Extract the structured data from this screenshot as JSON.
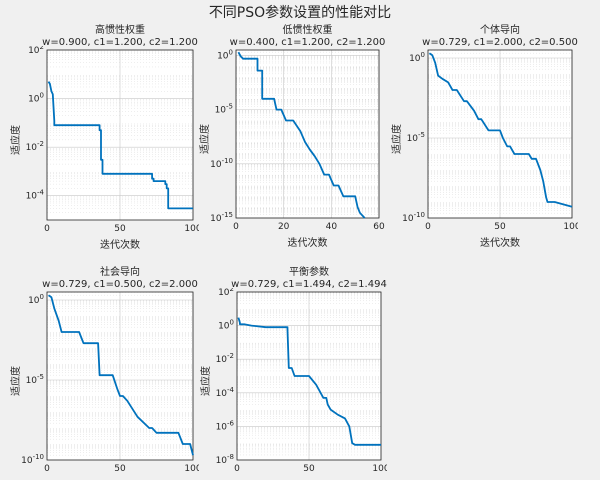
{
  "figure": {
    "title": "不同PSO参数设置的性能对比"
  },
  "chart_data": [
    {
      "type": "line",
      "title": "高惯性权重",
      "subtitle": "w=0.900, c1=1.200, c2=1.200",
      "xlabel": "迭代次数",
      "ylabel": "适应度",
      "xlim": [
        0,
        100
      ],
      "ylim_log10": [
        -5,
        2
      ],
      "yscale": "log",
      "grid": true,
      "xticks": [
        0,
        50,
        100
      ],
      "yticks": [
        "10^2",
        "10^0",
        "10^-2",
        "10^-4"
      ],
      "series": [
        {
          "color": "#0072bd",
          "x": [
            1,
            2,
            3,
            4,
            4,
            5,
            5,
            8,
            8,
            12,
            18,
            30,
            36,
            36,
            37,
            37,
            38,
            38,
            50,
            60,
            70,
            72,
            72,
            73,
            73,
            80,
            81,
            81,
            82,
            82,
            83,
            83,
            100
          ],
          "y": [
            5,
            4,
            2,
            1.5,
            1.5,
            0.12,
            0.08,
            0.08,
            0.08,
            0.08,
            0.08,
            0.08,
            0.08,
            0.05,
            0.05,
            0.003,
            0.003,
            0.0008,
            0.0008,
            0.0008,
            0.0008,
            0.0008,
            0.0005,
            0.0005,
            0.0004,
            0.0004,
            0.0004,
            0.0003,
            0.0003,
            0.0002,
            0.0002,
            3e-05,
            3e-05
          ]
        }
      ]
    },
    {
      "type": "line",
      "title": "低惯性权重",
      "subtitle": "w=0.400, c1=1.200, c2=1.200",
      "xlabel": "迭代次数",
      "ylabel": "适应度",
      "xlim": [
        0,
        60
      ],
      "ylim_log10": [
        -15,
        0.5
      ],
      "yscale": "log",
      "grid": true,
      "xticks": [
        0,
        20,
        40,
        60
      ],
      "yticks": [
        "10^0",
        "10^-5",
        "10^-10",
        "10^-15"
      ],
      "series": [
        {
          "color": "#0072bd",
          "x": [
            1,
            2,
            3,
            9,
            9,
            11,
            11,
            16,
            17,
            19,
            21,
            24,
            27,
            29,
            31,
            33,
            35,
            37,
            39,
            41,
            43,
            45,
            47,
            48,
            50,
            51,
            52,
            54
          ],
          "y": [
            2.0,
            0.8,
            0.5,
            0.5,
            0.04,
            0.04,
            0.0001,
            0.0001,
            1e-05,
            1e-05,
            1e-06,
            1e-06,
            1e-07,
            1e-08,
            2e-09,
            5e-10,
            1e-10,
            1e-11,
            1e-11,
            1e-12,
            1e-12,
            1e-13,
            1e-13,
            1e-13,
            1e-13,
            1e-14,
            3e-15,
            1e-15
          ]
        }
      ]
    },
    {
      "type": "line",
      "title": "个体导向",
      "subtitle": "w=0.729, c1=2.000, c2=0.500",
      "xlabel": "迭代次数",
      "ylabel": "适应度",
      "xlim": [
        0,
        100
      ],
      "ylim_log10": [
        -10,
        0.5
      ],
      "yscale": "log",
      "grid": true,
      "xticks": [
        0,
        50,
        100
      ],
      "yticks": [
        "10^0",
        "10^-5",
        "10^-10"
      ],
      "series": [
        {
          "color": "#0072bd",
          "x": [
            1,
            3,
            5,
            7,
            10,
            14,
            17,
            20,
            25,
            27,
            32,
            35,
            37,
            42,
            45,
            50,
            52,
            55,
            57,
            60,
            62,
            66,
            70,
            72,
            75,
            78,
            80,
            82,
            83,
            84,
            85,
            88,
            100
          ],
          "y": [
            2,
            1.5,
            0.5,
            0.08,
            0.05,
            0.03,
            0.01,
            0.01,
            0.002,
            0.002,
            0.0005,
            0.00015,
            0.00015,
            3e-05,
            3e-05,
            3e-05,
            1e-05,
            3e-06,
            3e-06,
            1e-06,
            1e-06,
            1e-06,
            1e-06,
            5e-07,
            5e-07,
            1e-07,
            2e-08,
            2e-09,
            1e-09,
            1e-09,
            1e-09,
            1e-09,
            5e-10
          ]
        }
      ]
    },
    {
      "type": "line",
      "title": "社会导向",
      "subtitle": "w=0.729, c1=0.500, c2=2.000",
      "xlabel": "",
      "ylabel": "适应度",
      "xlim": [
        0,
        100
      ],
      "ylim_log10": [
        -10,
        0.5
      ],
      "yscale": "log",
      "grid": true,
      "xticks": [
        0,
        50,
        100
      ],
      "yticks": [
        "10^0",
        "10^-5",
        "10^-10"
      ],
      "series": [
        {
          "color": "#0072bd",
          "x": [
            1,
            3,
            5,
            8,
            10,
            12,
            22,
            25,
            35,
            36,
            45,
            48,
            50,
            52,
            55,
            62,
            70,
            72,
            75,
            80,
            82,
            85,
            90,
            93,
            98,
            100
          ],
          "y": [
            2,
            1.5,
            0.3,
            0.05,
            0.01,
            0.01,
            0.01,
            0.002,
            0.002,
            2e-05,
            2e-05,
            3e-06,
            1e-06,
            1e-06,
            5e-07,
            5e-08,
            1e-08,
            1e-08,
            5e-09,
            5e-09,
            5e-09,
            5e-09,
            5e-09,
            1e-09,
            1e-09,
            2e-10
          ]
        }
      ]
    },
    {
      "type": "line",
      "title": "平衡参数",
      "subtitle": "w=0.729, c1=1.494, c2=1.494",
      "xlabel": "",
      "ylabel": "适应度",
      "xlim": [
        0,
        100
      ],
      "ylim_log10": [
        -8,
        2
      ],
      "yscale": "log",
      "grid": true,
      "xticks": [
        0,
        50,
        100
      ],
      "yticks": [
        "10^2",
        "10^0",
        "10^-2",
        "10^-4",
        "10^-6",
        "10^-8"
      ],
      "series": [
        {
          "color": "#0072bd",
          "x": [
            1,
            2,
            2,
            5,
            10,
            20,
            35,
            36,
            38,
            40,
            50,
            55,
            60,
            62,
            63,
            65,
            70,
            75,
            78,
            80,
            82,
            100
          ],
          "y": [
            3,
            1.5,
            1.2,
            1.2,
            1.0,
            0.8,
            0.8,
            0.003,
            0.003,
            0.001,
            0.001,
            0.0003,
            5e-05,
            5e-05,
            2e-05,
            1e-05,
            5e-06,
            3e-06,
            1e-06,
            1e-07,
            8e-08,
            8e-08
          ]
        }
      ]
    }
  ]
}
